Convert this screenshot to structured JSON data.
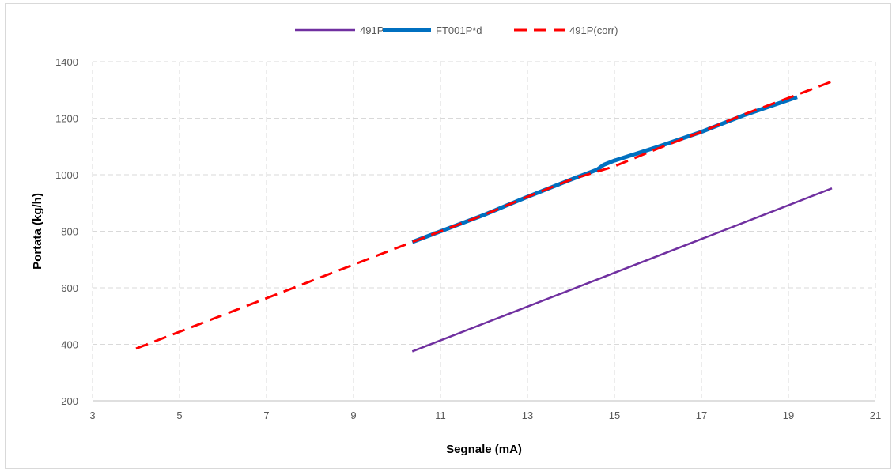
{
  "chart_data": {
    "type": "line",
    "title": "",
    "xlabel": "Segnale (mA)",
    "ylabel": "Portata (kg/h)",
    "xlim": [
      3,
      21
    ],
    "ylim": [
      200,
      1400
    ],
    "xticks": [
      3,
      5,
      7,
      9,
      11,
      13,
      15,
      17,
      19,
      21
    ],
    "yticks": [
      200,
      400,
      600,
      800,
      1000,
      1200,
      1400
    ],
    "grid": true,
    "legend_position": "top",
    "series": [
      {
        "name": "491P",
        "color": "#7030a0",
        "style": "solid",
        "x": [
          10.35,
          20.0
        ],
        "y": [
          375,
          952
        ]
      },
      {
        "name": "FT001P*d",
        "color": "#0070c0",
        "style": "thick",
        "x": [
          10.35,
          12.0,
          13.0,
          14.0,
          14.6,
          14.75,
          15.0,
          16.0,
          17.0,
          18.0,
          19.2
        ],
        "y": [
          762,
          858,
          922,
          983,
          1018,
          1035,
          1050,
          1099,
          1152,
          1212,
          1275
        ]
      },
      {
        "name": "491P(corr)",
        "color": "#ff0000",
        "style": "dashed",
        "x": [
          4.0,
          10.35,
          12.0,
          13.0,
          14.0,
          14.75,
          15.0,
          16.0,
          17.0,
          18.0,
          19.2,
          20.0
        ],
        "y": [
          385,
          762,
          858,
          922,
          983,
          1018,
          1030,
          1093,
          1152,
          1215,
          1283,
          1330
        ]
      }
    ]
  }
}
